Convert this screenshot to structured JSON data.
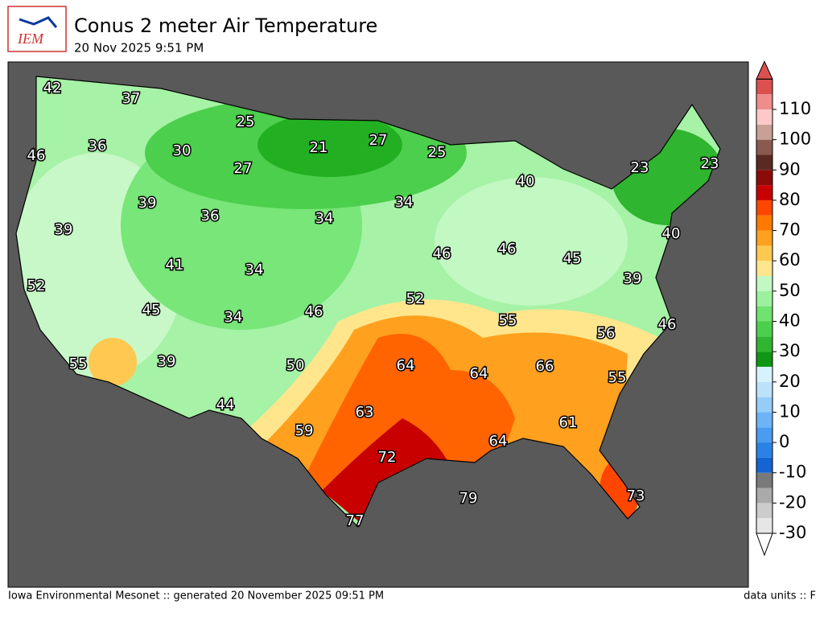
{
  "header": {
    "title": "Conus 2 meter Air Temperature",
    "subtitle": "20 Nov 2025 9:51 PM",
    "logo": "IEM"
  },
  "footer": {
    "left": "Iowa Environmental Mesonet :: generated 20 November 2025 09:51 PM",
    "right": "data units :: F"
  },
  "map": {
    "labels": [
      42,
      37,
      25,
      21,
      27,
      25,
      46,
      36,
      30,
      27,
      40,
      23,
      23,
      39,
      36,
      34,
      34,
      39,
      40,
      41,
      34,
      46,
      46,
      45,
      39,
      52,
      52,
      45,
      34,
      46,
      55,
      56,
      46,
      55,
      39,
      50,
      64,
      64,
      66,
      55,
      63,
      61,
      44,
      59,
      64,
      72,
      79,
      73,
      77
    ]
  },
  "colorbar": {
    "range": [
      -30,
      120
    ],
    "ticks": [
      -30,
      -20,
      -10,
      0,
      10,
      20,
      30,
      40,
      50,
      60,
      70,
      80,
      90,
      100,
      110
    ],
    "colors": [
      "#e6e6e6",
      "#cccccc",
      "#aaaaaa",
      "#7a7a7a",
      "#1464d2",
      "#2a82e6",
      "#4a9cf0",
      "#6cb4f5",
      "#96cdf8",
      "#bce2fb",
      "#d6f3fd",
      "#0f9614",
      "#2fb52f",
      "#4ccf4c",
      "#70e270",
      "#9cf29c",
      "#c2f8c2",
      "#ffe68c",
      "#ffc850",
      "#ffa01e",
      "#ff7800",
      "#ff4600",
      "#c80000",
      "#8c0a0a",
      "#5a2a22",
      "#8a5a4e",
      "#c8a096",
      "#ffc8c8",
      "#f08c8c",
      "#dc5050"
    ]
  }
}
